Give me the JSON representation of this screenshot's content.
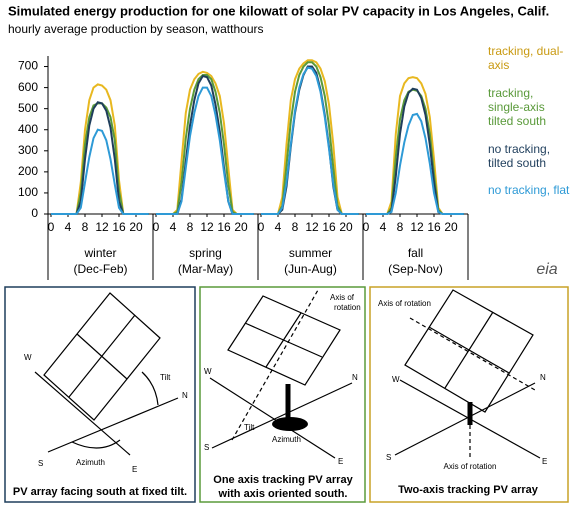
{
  "chart_data": {
    "type": "line",
    "title": "Simulated energy production for one kilowatt of solar PV capacity in Los Angeles, Calif.",
    "subtitle": "hourly average  production  by season, watthours",
    "x": [
      0,
      1,
      2,
      3,
      4,
      5,
      6,
      7,
      8,
      9,
      10,
      11,
      12,
      13,
      14,
      15,
      16,
      17,
      18,
      19,
      20,
      21,
      22,
      23
    ],
    "xlim": [
      0,
      24
    ],
    "xticks": [
      0,
      4,
      8,
      12,
      16,
      20
    ],
    "ylim": [
      0,
      750
    ],
    "yticks": [
      0,
      100,
      200,
      300,
      400,
      500,
      600,
      700
    ],
    "panels": [
      {
        "name": "winter",
        "period": "(Dec-Feb)"
      },
      {
        "name": "spring",
        "period": "(Mar-May)"
      },
      {
        "name": "summer",
        "period": "(Jun-Aug)"
      },
      {
        "name": "fall",
        "period": "(Sep-Nov)"
      }
    ],
    "series": [
      {
        "name": "tracking, dual-axis",
        "color": "#e8b820",
        "text_color": "#c99a12",
        "values": [
          [
            0,
            0,
            0,
            0,
            0,
            0,
            0,
            150,
            400,
            540,
            600,
            615,
            610,
            590,
            540,
            420,
            160,
            0,
            0,
            0,
            0,
            0,
            0,
            0
          ],
          [
            0,
            0,
            0,
            0,
            0,
            20,
            250,
            480,
            590,
            640,
            665,
            675,
            670,
            655,
            620,
            560,
            430,
            220,
            20,
            0,
            0,
            0,
            0,
            0
          ],
          [
            0,
            0,
            0,
            0,
            0,
            80,
            330,
            540,
            640,
            690,
            715,
            730,
            730,
            720,
            690,
            630,
            520,
            330,
            80,
            0,
            0,
            0,
            0,
            0
          ],
          [
            0,
            0,
            0,
            0,
            0,
            0,
            60,
            380,
            560,
            620,
            645,
            650,
            645,
            620,
            570,
            460,
            260,
            30,
            0,
            0,
            0,
            0,
            0,
            0
          ]
        ]
      },
      {
        "name": "tracking, single-axis tilted south",
        "color": "#5a9a3a",
        "text_color": "#5a9a3a",
        "values": [
          [
            0,
            0,
            0,
            0,
            0,
            0,
            0,
            100,
            330,
            460,
            515,
            525,
            525,
            505,
            460,
            350,
            110,
            0,
            0,
            0,
            0,
            0,
            0,
            0
          ],
          [
            0,
            0,
            0,
            0,
            0,
            10,
            150,
            360,
            500,
            590,
            640,
            660,
            660,
            640,
            580,
            480,
            330,
            140,
            10,
            0,
            0,
            0,
            0,
            0
          ],
          [
            0,
            0,
            0,
            0,
            0,
            40,
            230,
            440,
            580,
            660,
            700,
            720,
            720,
            700,
            650,
            560,
            420,
            220,
            40,
            0,
            0,
            0,
            0,
            0
          ],
          [
            0,
            0,
            0,
            0,
            0,
            0,
            30,
            270,
            450,
            540,
            580,
            590,
            585,
            560,
            500,
            380,
            190,
            20,
            0,
            0,
            0,
            0,
            0,
            0
          ]
        ]
      },
      {
        "name": "no tracking, tilted south",
        "color": "#1f3e5c",
        "text_color": "#1f3e5c",
        "values": [
          [
            0,
            0,
            0,
            0,
            0,
            0,
            0,
            60,
            260,
            420,
            500,
            530,
            525,
            490,
            410,
            260,
            60,
            0,
            0,
            0,
            0,
            0,
            0,
            0
          ],
          [
            0,
            0,
            0,
            0,
            0,
            0,
            70,
            250,
            420,
            540,
            620,
            655,
            650,
            610,
            520,
            390,
            220,
            60,
            0,
            0,
            0,
            0,
            0,
            0
          ],
          [
            0,
            0,
            0,
            0,
            0,
            20,
            130,
            320,
            480,
            590,
            660,
            700,
            700,
            670,
            590,
            470,
            320,
            130,
            20,
            0,
            0,
            0,
            0,
            0
          ],
          [
            0,
            0,
            0,
            0,
            0,
            0,
            15,
            180,
            380,
            510,
            575,
            595,
            590,
            550,
            470,
            330,
            150,
            10,
            0,
            0,
            0,
            0,
            0,
            0
          ]
        ]
      },
      {
        "name": "no tracking, flat",
        "color": "#2e9ad6",
        "text_color": "#2e9ad6",
        "values": [
          [
            0,
            0,
            0,
            0,
            0,
            0,
            0,
            30,
            150,
            270,
            360,
            400,
            395,
            350,
            260,
            140,
            30,
            0,
            0,
            0,
            0,
            0,
            0,
            0
          ],
          [
            0,
            0,
            0,
            0,
            0,
            0,
            60,
            220,
            370,
            480,
            560,
            600,
            600,
            560,
            470,
            350,
            200,
            60,
            0,
            0,
            0,
            0,
            0,
            0
          ],
          [
            0,
            0,
            0,
            0,
            0,
            30,
            150,
            330,
            490,
            600,
            665,
            695,
            690,
            655,
            580,
            460,
            310,
            140,
            20,
            0,
            0,
            0,
            0,
            0
          ],
          [
            0,
            0,
            0,
            0,
            0,
            0,
            10,
            100,
            230,
            340,
            420,
            470,
            475,
            440,
            360,
            240,
            100,
            10,
            0,
            0,
            0,
            0,
            0,
            0
          ]
        ]
      }
    ]
  },
  "logo": "eia",
  "diagrams": [
    {
      "caption": [
        "PV array facing south at fixed tilt."
      ],
      "labels": [
        "W",
        "N",
        "S",
        "E",
        "Tilt",
        "Azimuth"
      ]
    },
    {
      "caption": [
        "One axis tracking PV array",
        "with axis oriented south."
      ],
      "labels": [
        "Axis of",
        "rotation",
        "W",
        "N",
        "S",
        "E",
        "Tilt",
        "Azimuth"
      ]
    },
    {
      "caption": [
        "Two-axis tracking PV array"
      ],
      "labels": [
        "Axis of rotation",
        "W",
        "N",
        "S",
        "E",
        "Axis of rotation"
      ]
    }
  ]
}
